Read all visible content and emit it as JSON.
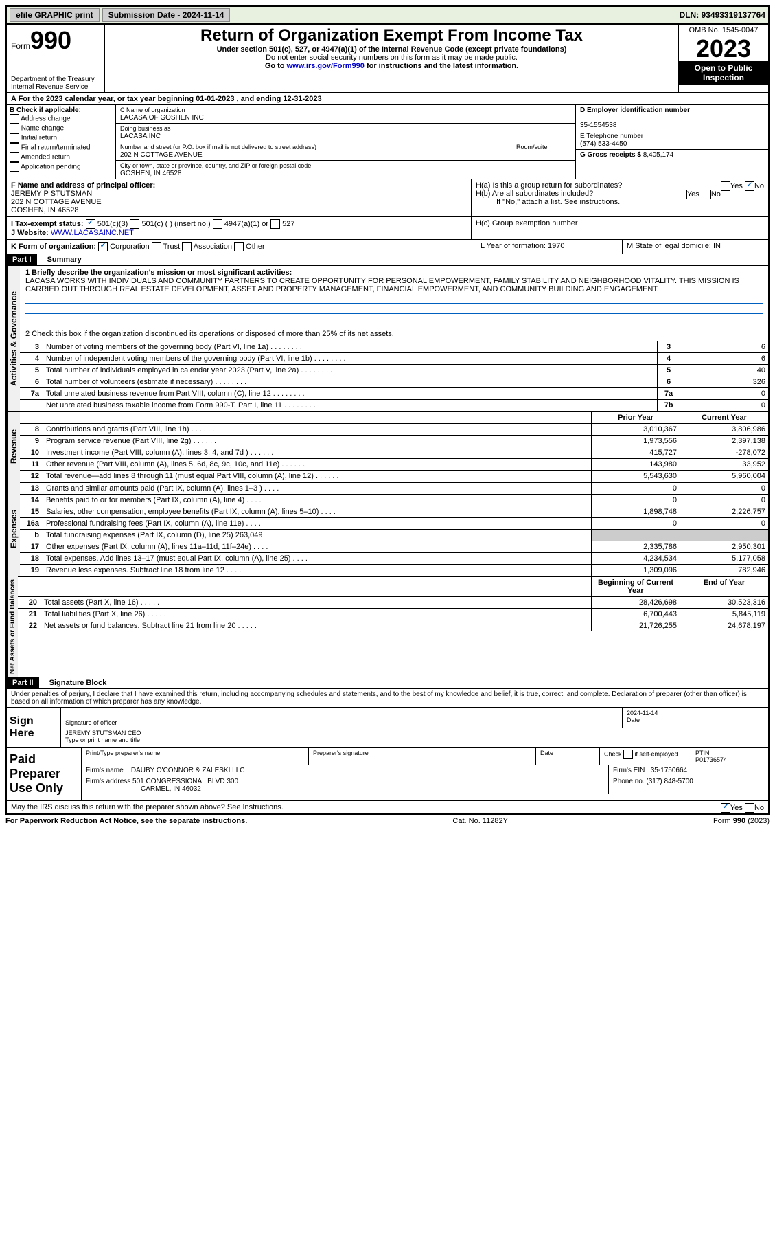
{
  "topbar": {
    "efile": "efile GRAPHIC print",
    "submission_label": "Submission Date - 2024-11-14",
    "dln": "DLN: 93493319137764"
  },
  "header": {
    "form_word": "Form",
    "form_num": "990",
    "dept": "Department of the Treasury\nInternal Revenue Service",
    "title": "Return of Organization Exempt From Income Tax",
    "subtitle": "Under section 501(c), 527, or 4947(a)(1) of the Internal Revenue Code (except private foundations)",
    "ssn_note": "Do not enter social security numbers on this form as it may be made public.",
    "goto": "Go to www.irs.gov/Form990 for instructions and the latest information.",
    "omb": "OMB No. 1545-0047",
    "year": "2023",
    "inspection": "Open to Public Inspection"
  },
  "section_a": "A  For the 2023 calendar year, or tax year beginning 01-01-2023    , and ending 12-31-2023",
  "section_b": {
    "label": "B Check if applicable:",
    "items": [
      "Address change",
      "Name change",
      "Initial return",
      "Final return/terminated",
      "Amended return",
      "Application pending"
    ]
  },
  "section_c": {
    "name_label": "C Name of organization",
    "name": "LACASA OF GOSHEN INC",
    "dba_label": "Doing business as",
    "dba": "LACASA INC",
    "street_label": "Number and street (or P.O. box if mail is not delivered to street address)",
    "room_label": "Room/suite",
    "street": "202 N COTTAGE AVENUE",
    "city_label": "City or town, state or province, country, and ZIP or foreign postal code",
    "city": "GOSHEN, IN  46528"
  },
  "section_d": {
    "ein_label": "D Employer identification number",
    "ein": "35-1554538",
    "phone_label": "E Telephone number",
    "phone": "(574) 533-4450",
    "gross_label": "G Gross receipts $",
    "gross": "8,405,174"
  },
  "section_f": {
    "label": "F Name and address of principal officer:",
    "name": "JEREMY P STUTSMAN",
    "addr1": "202 N COTTAGE AVENUE",
    "addr2": "GOSHEN, IN  46528"
  },
  "section_h": {
    "ha": "H(a)  Is this a group return for subordinates?",
    "hb": "H(b)  Are all subordinates included?",
    "hb_note": "If \"No,\" attach a list. See instructions.",
    "hc": "H(c)  Group exemption number"
  },
  "section_i": {
    "label": "I   Tax-exempt status:",
    "opt1": "501(c)(3)",
    "opt2": "501(c) (  ) (insert no.)",
    "opt3": "4947(a)(1) or",
    "opt4": "527"
  },
  "section_j": {
    "label": "J   Website:",
    "url": "WWW.LACASAINC.NET"
  },
  "section_k": {
    "label": "K Form of organization:",
    "opts": [
      "Corporation",
      "Trust",
      "Association",
      "Other"
    ]
  },
  "section_l": "L Year of formation: 1970",
  "section_m": "M State of legal domicile: IN",
  "part1": {
    "header": "Part I",
    "title": "Summary",
    "q1_label": "1    Briefly describe the organization's mission or most significant activities:",
    "q1_text": "LACASA WORKS WITH INDIVIDUALS AND COMMUNITY PARTNERS TO CREATE OPPORTUNITY FOR PERSONAL EMPOWERMENT, FAMILY STABILITY AND NEIGHBORHOOD VITALITY. THIS MISSION IS CARRIED OUT THROUGH REAL ESTATE DEVELOPMENT, ASSET AND PROPERTY MANAGEMENT, FINANCIAL EMPOWERMENT, AND COMMUNITY BUILDING AND ENGAGEMENT.",
    "q2": "2    Check this box        if the organization discontinued its operations or disposed of more than 25% of its net assets.",
    "governance_rows": [
      {
        "n": "3",
        "label": "Number of voting members of the governing body (Part VI, line 1a)",
        "box": "3",
        "val": "6"
      },
      {
        "n": "4",
        "label": "Number of independent voting members of the governing body (Part VI, line 1b)",
        "box": "4",
        "val": "6"
      },
      {
        "n": "5",
        "label": "Total number of individuals employed in calendar year 2023 (Part V, line 2a)",
        "box": "5",
        "val": "40"
      },
      {
        "n": "6",
        "label": "Total number of volunteers (estimate if necessary)",
        "box": "6",
        "val": "326"
      },
      {
        "n": "7a",
        "label": "Total unrelated business revenue from Part VIII, column (C), line 12",
        "box": "7a",
        "val": "0"
      },
      {
        "n": "",
        "label": "Net unrelated business taxable income from Form 990-T, Part I, line 11",
        "box": "7b",
        "val": "0"
      }
    ],
    "col_prior": "Prior Year",
    "col_current": "Current Year",
    "revenue_rows": [
      {
        "n": "8",
        "label": "Contributions and grants (Part VIII, line 1h)",
        "p": "3,010,367",
        "c": "3,806,986"
      },
      {
        "n": "9",
        "label": "Program service revenue (Part VIII, line 2g)",
        "p": "1,973,556",
        "c": "2,397,138"
      },
      {
        "n": "10",
        "label": "Investment income (Part VIII, column (A), lines 3, 4, and 7d )",
        "p": "415,727",
        "c": "-278,072"
      },
      {
        "n": "11",
        "label": "Other revenue (Part VIII, column (A), lines 5, 6d, 8c, 9c, 10c, and 11e)",
        "p": "143,980",
        "c": "33,952"
      },
      {
        "n": "12",
        "label": "Total revenue—add lines 8 through 11 (must equal Part VIII, column (A), line 12)",
        "p": "5,543,630",
        "c": "5,960,004"
      }
    ],
    "expense_rows": [
      {
        "n": "13",
        "label": "Grants and similar amounts paid (Part IX, column (A), lines 1–3 )",
        "p": "0",
        "c": "0"
      },
      {
        "n": "14",
        "label": "Benefits paid to or for members (Part IX, column (A), line 4)",
        "p": "0",
        "c": "0"
      },
      {
        "n": "15",
        "label": "Salaries, other compensation, employee benefits (Part IX, column (A), lines 5–10)",
        "p": "1,898,748",
        "c": "2,226,757"
      },
      {
        "n": "16a",
        "label": "Professional fundraising fees (Part IX, column (A), line 11e)",
        "p": "0",
        "c": "0"
      },
      {
        "n": "b",
        "label": "Total fundraising expenses (Part IX, column (D), line 25) 263,049",
        "p": "",
        "c": ""
      },
      {
        "n": "17",
        "label": "Other expenses (Part IX, column (A), lines 11a–11d, 11f–24e)",
        "p": "2,335,786",
        "c": "2,950,301"
      },
      {
        "n": "18",
        "label": "Total expenses. Add lines 13–17 (must equal Part IX, column (A), line 25)",
        "p": "4,234,534",
        "c": "5,177,058"
      },
      {
        "n": "19",
        "label": "Revenue less expenses. Subtract line 18 from line 12",
        "p": "1,309,096",
        "c": "782,946"
      }
    ],
    "col_begin": "Beginning of Current Year",
    "col_end": "End of Year",
    "net_rows": [
      {
        "n": "20",
        "label": "Total assets (Part X, line 16)",
        "p": "28,426,698",
        "c": "30,523,316"
      },
      {
        "n": "21",
        "label": "Total liabilities (Part X, line 26)",
        "p": "6,700,443",
        "c": "5,845,119"
      },
      {
        "n": "22",
        "label": "Net assets or fund balances. Subtract line 21 from line 20",
        "p": "21,726,255",
        "c": "24,678,197"
      }
    ]
  },
  "vert_labels": {
    "gov": "Activities & Governance",
    "rev": "Revenue",
    "exp": "Expenses",
    "net": "Net Assets or Fund Balances"
  },
  "part2": {
    "header": "Part II",
    "title": "Signature Block",
    "perjury": "Under penalties of perjury, I declare that I have examined this return, including accompanying schedules and statements, and to the best of my knowledge and belief, it is true, correct, and complete. Declaration of preparer (other than officer) is based on all information of which preparer has any knowledge."
  },
  "sign": {
    "sign_here": "Sign Here",
    "sig_label": "Signature of officer",
    "date_label": "Date",
    "date": "2024-11-14",
    "name": "JEREMY STUTSMAN CEO",
    "name_label": "Type or print name and title"
  },
  "preparer": {
    "title": "Paid Preparer Use Only",
    "print_label": "Print/Type preparer's name",
    "sig_label": "Preparer's signature",
    "date_label": "Date",
    "check_label": "Check         if self-employed",
    "ptin_label": "PTIN",
    "ptin": "P01736574",
    "firm_name_label": "Firm's name",
    "firm_name": "DAUBY O'CONNOR & ZALESKI LLC",
    "firm_ein_label": "Firm's EIN",
    "firm_ein": "35-1750664",
    "firm_addr_label": "Firm's address",
    "firm_addr": "501 CONGRESSIONAL BLVD 300",
    "firm_city": "CARMEL, IN  46032",
    "phone_label": "Phone no.",
    "phone": "(317) 848-5700"
  },
  "discuss": "May the IRS discuss this return with the preparer shown above? See Instructions.",
  "footer": {
    "left": "For Paperwork Reduction Act Notice, see the separate instructions.",
    "mid": "Cat. No. 11282Y",
    "right": "Form 990 (2023)"
  }
}
